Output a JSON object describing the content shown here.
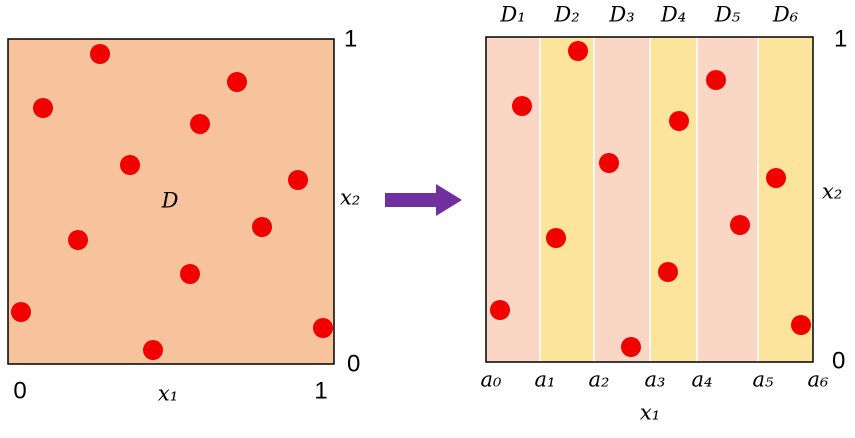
{
  "left_panel": {
    "y_max_label": "1",
    "y_min_label": "0",
    "y_axis_label": "x₂",
    "x_min_label": "0",
    "x_max_label": "1",
    "x_axis_label": "x₁",
    "domain_label": "D"
  },
  "right_panel": {
    "y_max_label": "1",
    "y_min_label": "0",
    "y_axis_label": "x₂",
    "x_axis_label": "x₁",
    "strip_labels": [
      "D₁",
      "D₂",
      "D₃",
      "D₄",
      "D₅",
      "D₆"
    ],
    "boundary_labels": [
      "a₀",
      "a₁",
      "a₂",
      "a₃",
      "a₄",
      "a₅",
      "a₆"
    ]
  }
}
